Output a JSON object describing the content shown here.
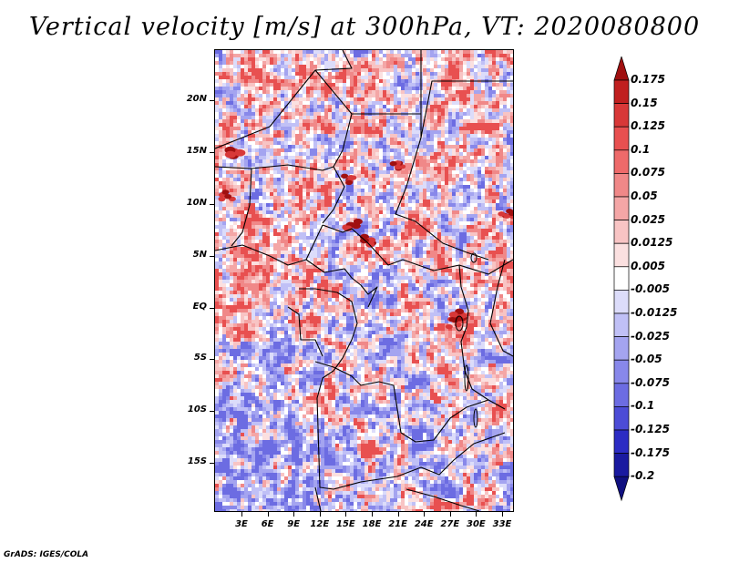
{
  "title": "Vertical velocity [m/s] at 300hPa, VT: 2020080800",
  "map": {
    "latitude_labels": [
      "20N",
      "15N",
      "10N",
      "5N",
      "EQ",
      "5S",
      "10S",
      "15S"
    ],
    "longitude_labels": [
      "3E",
      "6E",
      "9E",
      "12E",
      "15E",
      "18E",
      "21E",
      "24E",
      "27E",
      "30E",
      "33E"
    ]
  },
  "colorbar": {
    "levels": [
      "0.175",
      "0.15",
      "0.125",
      "0.1",
      "0.075",
      "0.05",
      "0.025",
      "0.0125",
      "0.005",
      "-0.005",
      "-0.0125",
      "-0.025",
      "-0.05",
      "-0.075",
      "-0.1",
      "-0.125",
      "-0.175",
      "-0.2"
    ],
    "colors": [
      "#a01010",
      "#c02020",
      "#d83838",
      "#e85050",
      "#ee6a6a",
      "#f08888",
      "#f4a6a6",
      "#f8c4c4",
      "#fbe0e0",
      "#ffffff",
      "#dcdcfa",
      "#c0c0f6",
      "#a4a4f0",
      "#8888ea",
      "#6c6ce2",
      "#4c4cd6",
      "#2c2cc4",
      "#1a1aa0",
      "#101080"
    ]
  },
  "credit": "GrADS: IGES/COLA"
}
